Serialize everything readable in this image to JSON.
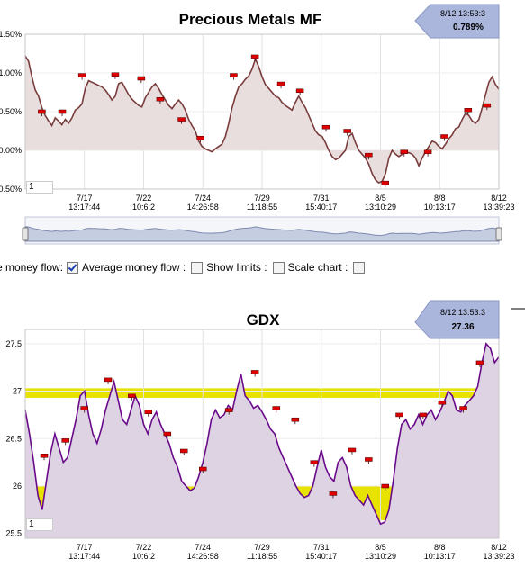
{
  "chart_data": [
    {
      "type": "area",
      "title": "Precious Metals MF",
      "ylim": [
        -0.5,
        1.5
      ],
      "yticks": [
        "1.50%",
        "1.00%",
        "0.50%",
        "0.00%",
        "-0.50%"
      ],
      "ytick_values": [
        1.5,
        1.0,
        0.5,
        0.0,
        -0.5
      ],
      "xticks": [
        {
          "date": "7/17",
          "time": "13:17:44"
        },
        {
          "date": "7/22",
          "time": "10:6:2"
        },
        {
          "date": "7/24",
          "time": "14:26:58"
        },
        {
          "date": "7/29",
          "time": "11:18:55"
        },
        {
          "date": "7/31",
          "time": "15:40:17"
        },
        {
          "date": "8/5",
          "time": "13:10:29"
        },
        {
          "date": "8/8",
          "time": "10:13:17"
        },
        {
          "date": "8/12",
          "time": "13:39:23"
        }
      ],
      "tooltip": {
        "time": "8/12 13:53:3",
        "value": "0.789%"
      },
      "zoom_field": "1",
      "series": [
        {
          "values": [
            1.22,
            1.15,
            0.95,
            0.78,
            0.7,
            0.55,
            0.45,
            0.38,
            0.32,
            0.42,
            0.38,
            0.33,
            0.4,
            0.35,
            0.42,
            0.52,
            0.55,
            0.6,
            0.8,
            0.9,
            0.88,
            0.86,
            0.84,
            0.82,
            0.78,
            0.72,
            0.65,
            0.7,
            0.86,
            0.88,
            0.8,
            0.72,
            0.66,
            0.62,
            0.58,
            0.56,
            0.68,
            0.75,
            0.82,
            0.86,
            0.8,
            0.72,
            0.65,
            0.58,
            0.54,
            0.6,
            0.65,
            0.6,
            0.52,
            0.4,
            0.32,
            0.25,
            0.12,
            0.05,
            0.02,
            0.0,
            -0.02,
            0.02,
            0.05,
            0.08,
            0.18,
            0.35,
            0.55,
            0.7,
            0.82,
            0.86,
            0.92,
            0.96,
            1.05,
            1.18,
            1.08,
            0.95,
            0.85,
            0.8,
            0.75,
            0.7,
            0.68,
            0.62,
            0.58,
            0.55,
            0.52,
            0.62,
            0.7,
            0.62,
            0.55,
            0.45,
            0.35,
            0.25,
            0.2,
            0.18,
            0.1,
            0.0,
            -0.08,
            -0.12,
            -0.1,
            -0.05,
            0.0,
            0.18,
            0.22,
            0.1,
            0.0,
            -0.05,
            -0.1,
            -0.18,
            -0.3,
            -0.38,
            -0.42,
            -0.4,
            -0.3,
            -0.1,
            0.0,
            -0.05,
            -0.08,
            -0.05,
            -0.03,
            -0.03,
            -0.05,
            -0.1,
            -0.2,
            -0.1,
            -0.02,
            0.05,
            0.12,
            0.1,
            0.05,
            0.02,
            0.08,
            0.15,
            0.2,
            0.28,
            0.3,
            0.4,
            0.48,
            0.45,
            0.38,
            0.35,
            0.4,
            0.55,
            0.72,
            0.88,
            0.95,
            0.85,
            0.79
          ]
        }
      ],
      "markers": [
        {
          "x": 0.035,
          "y": 0.5
        },
        {
          "x": 0.078,
          "y": 0.5
        },
        {
          "x": 0.12,
          "y": 0.97
        },
        {
          "x": 0.19,
          "y": 0.98
        },
        {
          "x": 0.245,
          "y": 0.93
        },
        {
          "x": 0.285,
          "y": 0.66
        },
        {
          "x": 0.33,
          "y": 0.4
        },
        {
          "x": 0.37,
          "y": 0.16
        },
        {
          "x": 0.44,
          "y": 0.97
        },
        {
          "x": 0.485,
          "y": 1.21
        },
        {
          "x": 0.54,
          "y": 0.86
        },
        {
          "x": 0.58,
          "y": 0.77
        },
        {
          "x": 0.635,
          "y": 0.3
        },
        {
          "x": 0.68,
          "y": 0.25
        },
        {
          "x": 0.725,
          "y": -0.06
        },
        {
          "x": 0.76,
          "y": -0.42
        },
        {
          "x": 0.8,
          "y": -0.02
        },
        {
          "x": 0.85,
          "y": -0.02
        },
        {
          "x": 0.885,
          "y": 0.18
        },
        {
          "x": 0.935,
          "y": 0.52
        },
        {
          "x": 0.975,
          "y": 0.58
        }
      ]
    },
    {
      "type": "area",
      "title": "GDX",
      "ylim": [
        25.45,
        27.65
      ],
      "yticks": [
        "27.5",
        "27",
        "26.5",
        "26",
        "25.5"
      ],
      "ytick_values": [
        27.5,
        27,
        26.5,
        26,
        25.5
      ],
      "xticks": [
        {
          "date": "7/17",
          "time": "13:17:44"
        },
        {
          "date": "7/22",
          "time": "10:6:2"
        },
        {
          "date": "7/24",
          "time": "14:26:58"
        },
        {
          "date": "7/29",
          "time": "11:18:55"
        },
        {
          "date": "7/31",
          "time": "15:40:17"
        },
        {
          "date": "8/5",
          "time": "13:10:29"
        },
        {
          "date": "8/8",
          "time": "10:13:17"
        },
        {
          "date": "8/12",
          "time": "13:39:23"
        }
      ],
      "tooltip": {
        "time": "8/12 13:53:3",
        "value": "27.36"
      },
      "zoom_field": "1",
      "bands": [
        {
          "from": 26.93,
          "to": 27.03
        },
        {
          "from": 25.64,
          "to": 26.0
        }
      ],
      "series": [
        {
          "values": [
            26.8,
            26.55,
            26.25,
            25.9,
            25.75,
            26.05,
            26.35,
            26.55,
            26.4,
            26.25,
            26.3,
            26.5,
            26.7,
            26.95,
            27.0,
            26.75,
            26.55,
            26.45,
            26.6,
            26.8,
            26.95,
            27.1,
            26.9,
            26.7,
            26.65,
            26.8,
            26.95,
            26.85,
            26.65,
            26.55,
            26.7,
            26.78,
            26.65,
            26.55,
            26.45,
            26.3,
            26.2,
            26.05,
            26.0,
            25.95,
            25.98,
            26.1,
            26.25,
            26.45,
            26.7,
            26.8,
            26.72,
            26.75,
            26.85,
            26.8,
            27.0,
            27.18,
            26.95,
            26.9,
            26.82,
            26.85,
            26.78,
            26.7,
            26.6,
            26.55,
            26.4,
            26.3,
            26.2,
            26.1,
            26.0,
            25.92,
            25.88,
            25.9,
            26.0,
            26.2,
            26.38,
            26.2,
            26.1,
            26.05,
            26.25,
            26.3,
            26.2,
            26.0,
            25.9,
            25.85,
            25.8,
            25.9,
            25.8,
            25.7,
            25.6,
            25.62,
            25.75,
            26.05,
            26.4,
            26.65,
            26.7,
            26.6,
            26.65,
            26.75,
            26.65,
            26.75,
            26.8,
            26.7,
            26.78,
            26.88,
            27.0,
            26.95,
            26.8,
            26.78,
            26.85,
            26.9,
            26.95,
            27.05,
            27.3,
            27.5,
            27.45,
            27.3,
            27.36
          ]
        }
      ],
      "markers": [
        {
          "x": 0.04,
          "y": 26.32
        },
        {
          "x": 0.085,
          "y": 26.48
        },
        {
          "x": 0.125,
          "y": 26.82
        },
        {
          "x": 0.175,
          "y": 27.12
        },
        {
          "x": 0.225,
          "y": 26.95
        },
        {
          "x": 0.26,
          "y": 26.78
        },
        {
          "x": 0.3,
          "y": 26.55
        },
        {
          "x": 0.335,
          "y": 26.37
        },
        {
          "x": 0.375,
          "y": 26.18
        },
        {
          "x": 0.43,
          "y": 26.8
        },
        {
          "x": 0.485,
          "y": 27.2
        },
        {
          "x": 0.53,
          "y": 26.82
        },
        {
          "x": 0.57,
          "y": 26.7
        },
        {
          "x": 0.61,
          "y": 26.25
        },
        {
          "x": 0.65,
          "y": 25.92
        },
        {
          "x": 0.69,
          "y": 26.38
        },
        {
          "x": 0.725,
          "y": 26.28
        },
        {
          "x": 0.76,
          "y": 26.0
        },
        {
          "x": 0.79,
          "y": 26.75
        },
        {
          "x": 0.84,
          "y": 26.75
        },
        {
          "x": 0.88,
          "y": 26.88
        },
        {
          "x": 0.925,
          "y": 26.82
        },
        {
          "x": 0.96,
          "y": 27.3
        }
      ]
    }
  ],
  "controls": {
    "money_flow_label": "e money flow:",
    "money_flow_checked": true,
    "avg_label": "Average money flow :",
    "avg_checked": false,
    "limits_label": "Show limits :",
    "limits_checked": false,
    "scale_label": "Scale chart :",
    "scale_checked": false
  },
  "colors": {
    "line1": "#7a3c3c",
    "fill1": "#e8dede",
    "line2": "#6a0a8a",
    "fill2": "#ddd3e3",
    "band": "#e8e200",
    "marker": "#e00000",
    "tooltip": "#aab6dc"
  }
}
